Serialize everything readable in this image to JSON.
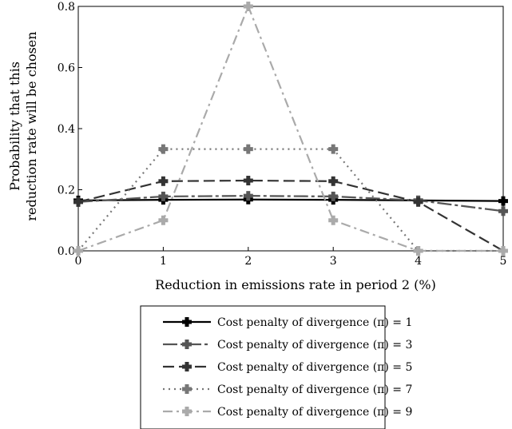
{
  "chart_data": {
    "type": "line",
    "title": "",
    "xlabel": "Reduction in emissions rate in period 2 (%)",
    "ylabel_lines": [
      "Probability that this",
      "reduction rate will be chosen"
    ],
    "x": [
      0,
      1,
      2,
      3,
      4,
      5
    ],
    "xlim": [
      0,
      5
    ],
    "ylim": [
      0,
      0.8
    ],
    "xticks": [
      "0",
      "1",
      "2",
      "3",
      "4",
      "5"
    ],
    "yticks": [
      "0.0",
      "0.2",
      "0.4",
      "0.6",
      "0.8"
    ],
    "grid": false,
    "legend_position": "bottom",
    "series": [
      {
        "name": "Cost penalty of divergence (π) = 1",
        "values": [
          0.165,
          0.167,
          0.168,
          0.167,
          0.165,
          0.163
        ],
        "color": "#000000",
        "dash": "solid"
      },
      {
        "name": "Cost penalty of divergence (π) = 3",
        "values": [
          0.16,
          0.178,
          0.18,
          0.178,
          0.165,
          0.13
        ],
        "color": "#555555",
        "dash": "longdash-dot"
      },
      {
        "name": "Cost penalty of divergence (π) = 5",
        "values": [
          0.16,
          0.228,
          0.23,
          0.228,
          0.16,
          0.0
        ],
        "color": "#333333",
        "dash": "longdash"
      },
      {
        "name": "Cost penalty of divergence (π) = 7",
        "values": [
          0.0,
          0.333,
          0.333,
          0.333,
          0.0,
          0.0
        ],
        "color": "#777777",
        "dash": "dotted"
      },
      {
        "name": "Cost penalty of divergence (π) = 9",
        "values": [
          0.0,
          0.1,
          0.8,
          0.1,
          0.0,
          0.0
        ],
        "color": "#aaaaaa",
        "dash": "dashdot"
      }
    ]
  }
}
